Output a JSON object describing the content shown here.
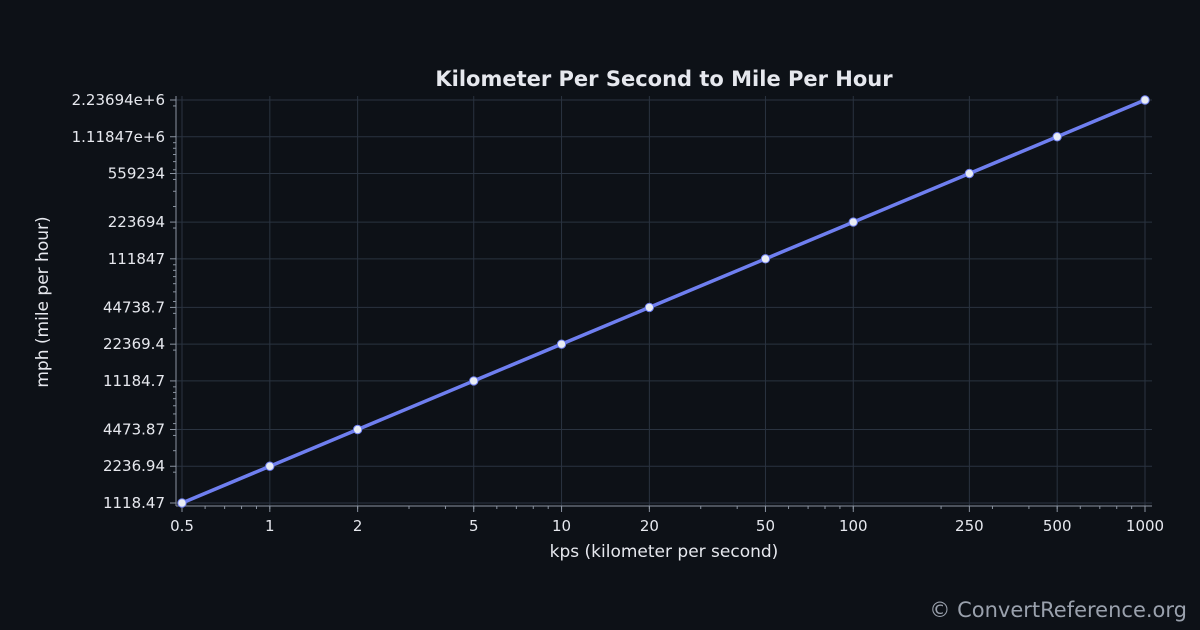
{
  "chart_data": {
    "type": "line",
    "title": "Kilometer Per Second to Mile Per Hour",
    "xlabel": "kps (kilometer per second)",
    "ylabel": "mph (mile per hour)",
    "x_scale": "log",
    "y_scale": "log",
    "xlim": [
      0.5,
      1000
    ],
    "ylim": [
      1118.47,
      2236940
    ],
    "grid": true,
    "x_ticks": [
      {
        "value": 0.5,
        "label": "0.5"
      },
      {
        "value": 1,
        "label": "1"
      },
      {
        "value": 2,
        "label": "2"
      },
      {
        "value": 5,
        "label": "5"
      },
      {
        "value": 10,
        "label": "10"
      },
      {
        "value": 20,
        "label": "20"
      },
      {
        "value": 50,
        "label": "50"
      },
      {
        "value": 100,
        "label": "100"
      },
      {
        "value": 250,
        "label": "250"
      },
      {
        "value": 500,
        "label": "500"
      },
      {
        "value": 1000,
        "label": "1000"
      }
    ],
    "y_ticks": [
      {
        "value": 1118.47,
        "label": "1118.47"
      },
      {
        "value": 2236.94,
        "label": "2236.94"
      },
      {
        "value": 4473.87,
        "label": "4473.87"
      },
      {
        "value": 11184.7,
        "label": "11184.7"
      },
      {
        "value": 22369.4,
        "label": "22369.4"
      },
      {
        "value": 44738.7,
        "label": "44738.7"
      },
      {
        "value": 111847,
        "label": "111847"
      },
      {
        "value": 223694,
        "label": "223694"
      },
      {
        "value": 559234,
        "label": "559234"
      },
      {
        "value": 1118470,
        "label": "1.11847e+6"
      },
      {
        "value": 2236940,
        "label": "2.23694e+6"
      }
    ],
    "series": [
      {
        "x": [
          0.5,
          1,
          2,
          5,
          10,
          20,
          50,
          100,
          250,
          500,
          1000
        ],
        "y": [
          1118.47,
          2236.94,
          4473.87,
          11184.7,
          22369.4,
          44738.7,
          111847,
          223694,
          559234,
          1118470,
          2236940
        ]
      }
    ]
  },
  "colors": {
    "background": "#0d1117",
    "line": "#6f7ff0",
    "marker": "#e8ecf4",
    "grid": "#2a3340",
    "axis": "#8a93a0",
    "text": "#e6e8ee"
  },
  "watermark": "© ConvertReference.org"
}
